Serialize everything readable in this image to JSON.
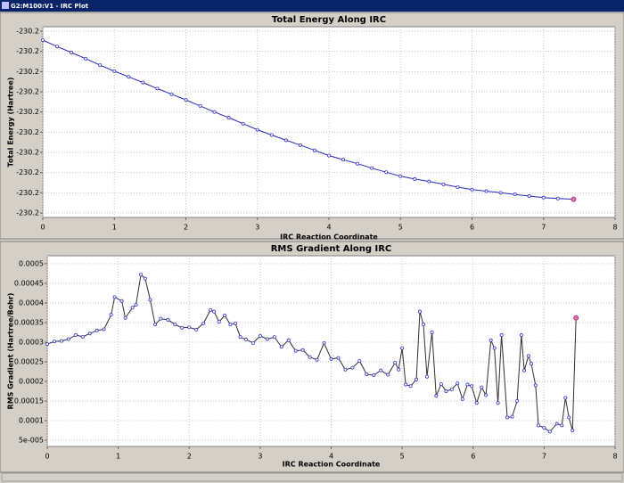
{
  "window_title": "G2:M100:V1 - IRC Plot",
  "chart_data": [
    {
      "type": "line",
      "title": "Total Energy Along IRC",
      "x_label": "IRC Reaction Coordinate",
      "y_label": "Total Energy (Hartree)",
      "x": [
        0,
        0.2,
        0.4,
        0.6,
        0.8,
        1.0,
        1.2,
        1.4,
        1.6,
        1.8,
        2.0,
        2.2,
        2.4,
        2.6,
        2.8,
        3.0,
        3.2,
        3.4,
        3.6,
        3.8,
        4.0,
        4.2,
        4.4,
        4.6,
        4.8,
        5.0,
        5.2,
        5.4,
        5.6,
        5.8,
        6.0,
        6.2,
        6.4,
        6.6,
        6.8,
        7.0,
        7.2,
        7.42
      ],
      "series": [
        {
          "color": "#2828b8",
          "marker_color": "#3a3ad0",
          "highlight_color": "#e070b0",
          "values": [
            -230.1822,
            -230.1838,
            -230.1853,
            -230.1868,
            -230.1884,
            -230.1899,
            -230.1913,
            -230.1927,
            -230.1942,
            -230.1956,
            -230.197,
            -230.1985,
            -230.2,
            -230.2014,
            -230.2029,
            -230.2044,
            -230.2057,
            -230.207,
            -230.2082,
            -230.2095,
            -230.2108,
            -230.2118,
            -230.2128,
            -230.2139,
            -230.2149,
            -230.2159,
            -230.2166,
            -230.2172,
            -230.2179,
            -230.2186,
            -230.2192,
            -230.2196,
            -230.22,
            -230.2204,
            -230.2208,
            -230.2212,
            -230.2214,
            -230.2216
          ]
        }
      ],
      "xlim": [
        0,
        8
      ],
      "xticks": [
        0,
        1,
        2,
        3,
        4,
        5,
        6,
        7,
        8
      ],
      "ylim": [
        -230.2261,
        -230.1789
      ],
      "yticks": [
        {
          "value": -230.18,
          "label": "-230.2"
        },
        {
          "value": -230.185,
          "label": "-230.2"
        },
        {
          "value": -230.19,
          "label": "-230.2"
        },
        {
          "value": -230.195,
          "label": "-230.2"
        },
        -230.2,
        {
          "value": -230.205,
          "label": "-230.2"
        },
        {
          "value": -230.21,
          "label": "-230.2"
        },
        {
          "value": -230.215,
          "label": "-230.2"
        },
        {
          "value": -230.22,
          "label": "-230.2"
        },
        {
          "value": -230.225,
          "label": "-230.2"
        }
      ],
      "grid": true
    },
    {
      "type": "line",
      "title": "RMS Gradient Along IRC",
      "x_label": "IRC Reaction Coordinate",
      "y_label": "RMS Gradient (Hartree/Bohr)",
      "x": [
        0,
        0.1,
        0.2,
        0.3,
        0.4,
        0.5,
        0.6,
        0.7,
        0.8,
        0.9,
        0.95,
        1.05,
        1.1,
        1.2,
        1.25,
        1.32,
        1.38,
        1.45,
        1.52,
        1.6,
        1.7,
        1.8,
        1.9,
        2.0,
        2.1,
        2.2,
        2.3,
        2.35,
        2.42,
        2.5,
        2.58,
        2.65,
        2.72,
        2.8,
        2.9,
        3.0,
        3.1,
        3.2,
        3.3,
        3.4,
        3.5,
        3.6,
        3.7,
        3.8,
        3.9,
        4.0,
        4.1,
        4.2,
        4.3,
        4.4,
        4.5,
        4.6,
        4.7,
        4.8,
        4.9,
        4.95,
        5.0,
        5.05,
        5.12,
        5.2,
        5.25,
        5.3,
        5.35,
        5.42,
        5.48,
        5.55,
        5.62,
        5.7,
        5.78,
        5.85,
        5.92,
        5.98,
        6.05,
        6.12,
        6.18,
        6.25,
        6.3,
        6.35,
        6.4,
        6.48,
        6.55,
        6.62,
        6.68,
        6.72,
        6.78,
        6.82,
        6.88,
        6.92,
        7.0,
        7.08,
        7.18,
        7.25,
        7.3,
        7.35,
        7.4,
        7.45
      ],
      "series": [
        {
          "color": "#303030",
          "marker_color": "#3a3ad0",
          "highlight_color": "#e070b0",
          "values": [
            0.000295,
            0.000302,
            0.000303,
            0.000308,
            0.000318,
            0.000314,
            0.000322,
            0.00033,
            0.000333,
            0.00037,
            0.000415,
            0.000405,
            0.000362,
            0.000388,
            0.000395,
            0.000472,
            0.000462,
            0.000408,
            0.000345,
            0.00036,
            0.000357,
            0.000345,
            0.000337,
            0.000338,
            0.000332,
            0.000348,
            0.000382,
            0.000378,
            0.000352,
            0.000368,
            0.000345,
            0.000348,
            0.000313,
            0.000307,
            0.000298,
            0.000316,
            0.000308,
            0.000313,
            0.000288,
            0.000305,
            0.000278,
            0.00028,
            0.000262,
            0.000255,
            0.000298,
            0.000257,
            0.00026,
            0.00023,
            0.000235,
            0.000252,
            0.000218,
            0.000216,
            0.000228,
            0.000217,
            0.000248,
            0.00023,
            0.000285,
            0.000192,
            0.000188,
            0.000205,
            0.000378,
            0.000345,
            0.000212,
            0.000325,
            0.000163,
            0.000193,
            0.000175,
            0.00018,
            0.000195,
            0.000155,
            0.000192,
            0.000188,
            0.000145,
            0.000185,
            0.000165,
            0.000305,
            0.000285,
            0.000145,
            0.000318,
            0.000108,
            0.00011,
            0.00015,
            0.000318,
            0.000228,
            0.000265,
            0.000245,
            0.00019,
            8.8e-05,
            8.2e-05,
            7.2e-05,
            9.2e-05,
            8.8e-05,
            0.000158,
            0.000108,
            7.5e-05,
            0.000362
          ]
        }
      ],
      "xlim": [
        0,
        8
      ],
      "xticks": [
        0,
        1,
        2,
        3,
        4,
        5,
        6,
        7,
        8
      ],
      "ylim": [
        3.42e-05,
        0.0005203
      ],
      "yticks": [
        0.0005,
        0.00045,
        0.0004,
        0.00035,
        0.0003,
        0.00025,
        0.0002,
        0.00015,
        0.0001,
        {
          "value": 5e-05,
          "label": "5e-005"
        }
      ],
      "grid": true
    }
  ]
}
